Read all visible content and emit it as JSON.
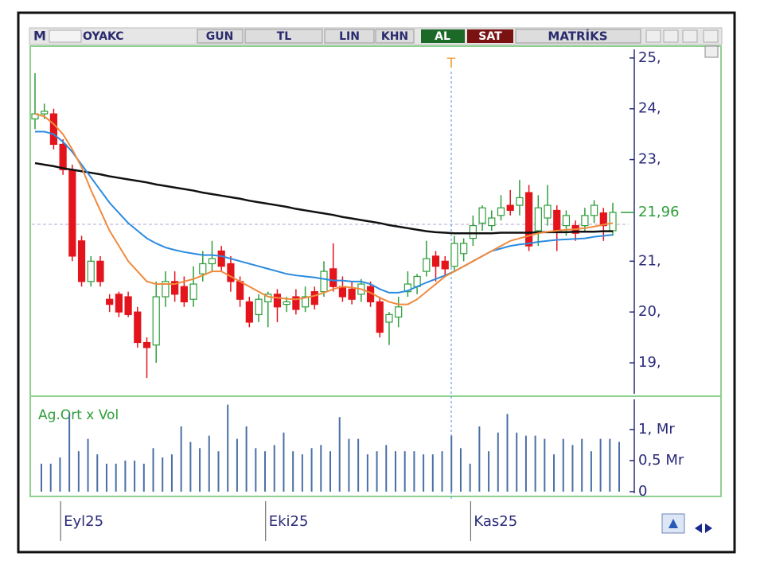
{
  "toolbar": {
    "logo": "M",
    "symbol": "OYAKC",
    "period": "GUN",
    "currency": "TL",
    "scale": "LIN",
    "buttons": [
      "KHN",
      "AL",
      "SAT"
    ],
    "brand": "MATRİKS"
  },
  "chart_data": [
    {
      "type": "candlestick",
      "marker_label": "T",
      "categories": [
        null,
        null,
        null,
        "Eyl25",
        null,
        null,
        null,
        null,
        null,
        null,
        null,
        null,
        null,
        null,
        null,
        null,
        null,
        null,
        null,
        null,
        null,
        null,
        null,
        null,
        null,
        "Eki25",
        null,
        null,
        null,
        null,
        null,
        null,
        null,
        null,
        null,
        null,
        null,
        null,
        null,
        null,
        null,
        null,
        null,
        null,
        null,
        null,
        null,
        "Kas25",
        null,
        null,
        null,
        null,
        null,
        null,
        null,
        null,
        null,
        null,
        null,
        null,
        null,
        null,
        null
      ],
      "open": [
        23.8,
        23.9,
        23.9,
        23.3,
        22.8,
        21.4,
        20.6,
        21.0,
        20.25,
        20.35,
        20.3,
        20.0,
        19.4,
        19.35,
        20.3,
        20.6,
        20.5,
        20.25,
        20.75,
        20.95,
        21.2,
        20.95,
        20.6,
        20.2,
        19.95,
        20.2,
        20.35,
        20.15,
        20.3,
        20.1,
        20.4,
        20.4,
        20.85,
        20.5,
        20.45,
        20.35,
        20.5,
        20.2,
        19.8,
        19.9,
        20.4,
        20.5,
        20.8,
        21.1,
        21.0,
        20.9,
        21.15,
        21.45,
        21.75,
        21.7,
        21.9,
        22.1,
        22.1,
        22.35,
        21.6,
        21.85,
        22.0,
        21.7,
        21.7,
        21.7,
        21.9,
        21.95,
        21.6
      ],
      "high": [
        24.7,
        24.1,
        24.0,
        23.4,
        22.9,
        21.5,
        21.1,
        21.1,
        20.35,
        20.4,
        20.4,
        20.1,
        19.5,
        20.6,
        20.8,
        20.8,
        20.7,
        20.9,
        21.2,
        21.4,
        21.3,
        21.1,
        20.7,
        20.3,
        20.35,
        20.4,
        20.45,
        20.3,
        20.45,
        20.5,
        20.5,
        21.0,
        21.35,
        20.7,
        20.6,
        20.65,
        20.6,
        20.3,
        20.0,
        20.3,
        20.8,
        20.75,
        21.4,
        21.2,
        21.1,
        21.5,
        21.45,
        21.9,
        22.1,
        22.0,
        22.3,
        22.4,
        22.6,
        22.5,
        22.3,
        22.5,
        22.1,
        22.0,
        21.8,
        22.05,
        22.2,
        22.05,
        22.15
      ],
      "low": [
        23.6,
        23.8,
        23.2,
        22.7,
        21.0,
        20.5,
        20.5,
        20.5,
        20.0,
        19.9,
        19.9,
        19.3,
        18.7,
        19.0,
        20.1,
        20.2,
        20.1,
        20.1,
        20.6,
        20.8,
        20.8,
        20.4,
        20.1,
        19.7,
        19.8,
        19.7,
        19.8,
        20.0,
        19.95,
        20.0,
        20.05,
        20.3,
        20.4,
        20.2,
        20.15,
        20.2,
        20.1,
        19.5,
        19.35,
        19.7,
        20.3,
        20.35,
        20.7,
        20.6,
        20.7,
        20.8,
        21.0,
        21.3,
        21.6,
        21.6,
        21.8,
        21.9,
        21.9,
        21.2,
        21.3,
        21.7,
        21.2,
        21.5,
        21.4,
        21.6,
        21.75,
        21.4,
        21.5
      ],
      "close": [
        23.9,
        23.95,
        23.3,
        22.8,
        21.1,
        20.6,
        21.0,
        20.6,
        20.15,
        20.0,
        19.95,
        19.4,
        19.3,
        20.3,
        20.6,
        20.35,
        20.2,
        20.55,
        20.95,
        21.05,
        20.9,
        20.6,
        20.25,
        19.8,
        20.25,
        20.35,
        20.1,
        20.2,
        20.05,
        20.3,
        20.15,
        20.8,
        20.5,
        20.3,
        20.25,
        20.55,
        20.2,
        19.6,
        19.95,
        20.1,
        20.55,
        20.7,
        21.05,
        20.9,
        20.85,
        21.35,
        21.35,
        21.7,
        22.05,
        21.85,
        22.05,
        22.0,
        22.25,
        21.3,
        22.05,
        22.1,
        21.6,
        21.9,
        21.55,
        21.9,
        22.1,
        21.7,
        21.96
      ],
      "up_color": "#2e9e3a",
      "down_color": "#e3141c",
      "lines": [
        {
          "color": "#111111",
          "values": [
            22.93,
            22.9,
            22.87,
            22.83,
            22.8,
            22.77,
            22.74,
            22.71,
            22.67,
            22.64,
            22.61,
            22.58,
            22.55,
            22.51,
            22.48,
            22.45,
            22.42,
            22.39,
            22.35,
            22.32,
            22.29,
            22.26,
            22.23,
            22.19,
            22.16,
            22.13,
            22.1,
            22.07,
            22.03,
            22.0,
            21.97,
            21.94,
            21.91,
            21.87,
            21.84,
            21.81,
            21.78,
            21.75,
            21.71,
            21.68,
            21.65,
            21.62,
            21.59,
            21.57,
            21.56,
            21.55,
            21.55,
            21.55,
            21.55,
            21.55,
            21.56,
            21.56,
            21.56,
            21.56,
            21.57,
            21.57,
            21.57,
            21.57,
            21.58,
            21.58,
            21.58,
            21.59,
            21.59
          ]
        },
        {
          "color": "#2b8be0",
          "values": [
            23.55,
            23.55,
            23.5,
            23.35,
            23.15,
            22.9,
            22.65,
            22.4,
            22.15,
            21.95,
            21.75,
            21.6,
            21.45,
            21.35,
            21.27,
            21.22,
            21.18,
            21.15,
            21.12,
            21.12,
            21.1,
            21.05,
            21.0,
            20.95,
            20.9,
            20.85,
            20.8,
            20.75,
            20.72,
            20.7,
            20.68,
            20.65,
            20.62,
            20.62,
            20.6,
            20.6,
            20.55,
            20.45,
            20.38,
            20.38,
            20.42,
            20.5,
            20.58,
            20.65,
            20.72,
            20.8,
            20.9,
            21.0,
            21.1,
            21.2,
            21.25,
            21.3,
            21.33,
            21.35,
            21.38,
            21.4,
            21.42,
            21.43,
            21.44,
            21.45,
            21.48,
            21.5,
            21.52
          ]
        },
        {
          "color": "#f08a3c",
          "values": [
            23.9,
            23.85,
            23.7,
            23.5,
            23.2,
            22.85,
            22.4,
            22.0,
            21.6,
            21.3,
            21.0,
            20.8,
            20.6,
            20.55,
            20.55,
            20.55,
            20.6,
            20.65,
            20.72,
            20.8,
            20.8,
            20.7,
            20.6,
            20.5,
            20.4,
            20.3,
            20.28,
            20.26,
            20.25,
            20.28,
            20.32,
            20.38,
            20.45,
            20.5,
            20.48,
            20.45,
            20.38,
            20.28,
            20.2,
            20.15,
            20.15,
            20.25,
            20.4,
            20.55,
            20.7,
            20.8,
            20.9,
            21.0,
            21.1,
            21.2,
            21.3,
            21.4,
            21.45,
            21.5,
            21.55,
            21.58,
            21.6,
            21.62,
            21.63,
            21.65,
            21.68,
            21.72,
            21.75
          ]
        }
      ],
      "last_price": {
        "value": 21.96,
        "label": "21,96",
        "color": "#2e9e3a"
      },
      "ylim": [
        18.39,
        25.17
      ],
      "yticks": [
        {
          "value": 25,
          "label": "25,"
        },
        {
          "value": 24,
          "label": "24,"
        },
        {
          "value": 23,
          "label": "23,"
        },
        {
          "value": 21,
          "label": "21,"
        },
        {
          "value": 20,
          "label": "20,"
        },
        {
          "value": 19,
          "label": "19,"
        }
      ]
    },
    {
      "type": "bar",
      "title": "Ag.Ort x Vol",
      "color": "#4a6fa5",
      "values": [
        0.45,
        0.45,
        0.55,
        1.25,
        0.65,
        0.85,
        0.6,
        0.45,
        0.45,
        0.5,
        0.5,
        0.45,
        0.7,
        0.55,
        0.6,
        1.05,
        0.8,
        0.7,
        0.9,
        0.65,
        1.4,
        0.85,
        1.05,
        0.7,
        0.65,
        0.75,
        0.95,
        0.65,
        0.6,
        0.7,
        0.75,
        0.65,
        1.2,
        0.85,
        0.85,
        0.6,
        0.65,
        0.75,
        0.65,
        0.65,
        0.65,
        0.6,
        0.6,
        0.65,
        0.9,
        0.7,
        0.45,
        1.05,
        0.65,
        0.95,
        1.25,
        0.95,
        0.9,
        0.9,
        0.85,
        0.6,
        0.85,
        0.75,
        0.85,
        0.65,
        0.85,
        0.85,
        0.8
      ],
      "ylim": [
        0,
        1.51
      ],
      "yticks": [
        {
          "value": 1,
          "label": "1, Mr"
        },
        {
          "value": 0.5,
          "label": "0,5 Mr"
        },
        0
      ]
    }
  ]
}
